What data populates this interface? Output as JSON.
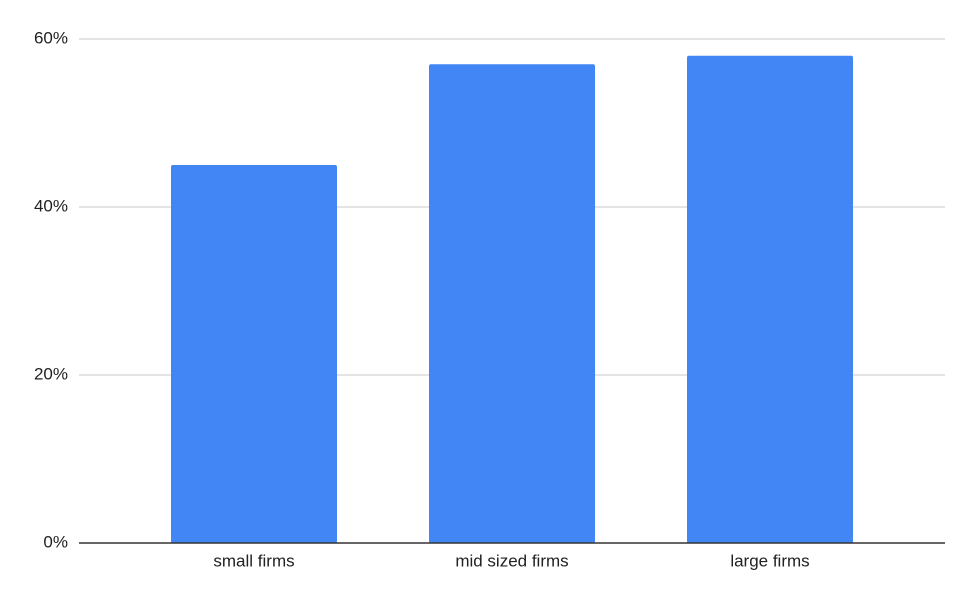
{
  "chart_data": {
    "type": "bar",
    "categories": [
      "small firms",
      "mid sized firms",
      "large firms"
    ],
    "values": [
      45,
      57,
      58
    ],
    "color": "#4285f4",
    "ylim": [
      0,
      60
    ],
    "yticks": [
      {
        "value": 0,
        "label": "0%"
      },
      {
        "value": 20,
        "label": "20%"
      },
      {
        "value": 40,
        "label": "40%"
      },
      {
        "value": 60,
        "label": "60%"
      }
    ],
    "grid": true
  }
}
